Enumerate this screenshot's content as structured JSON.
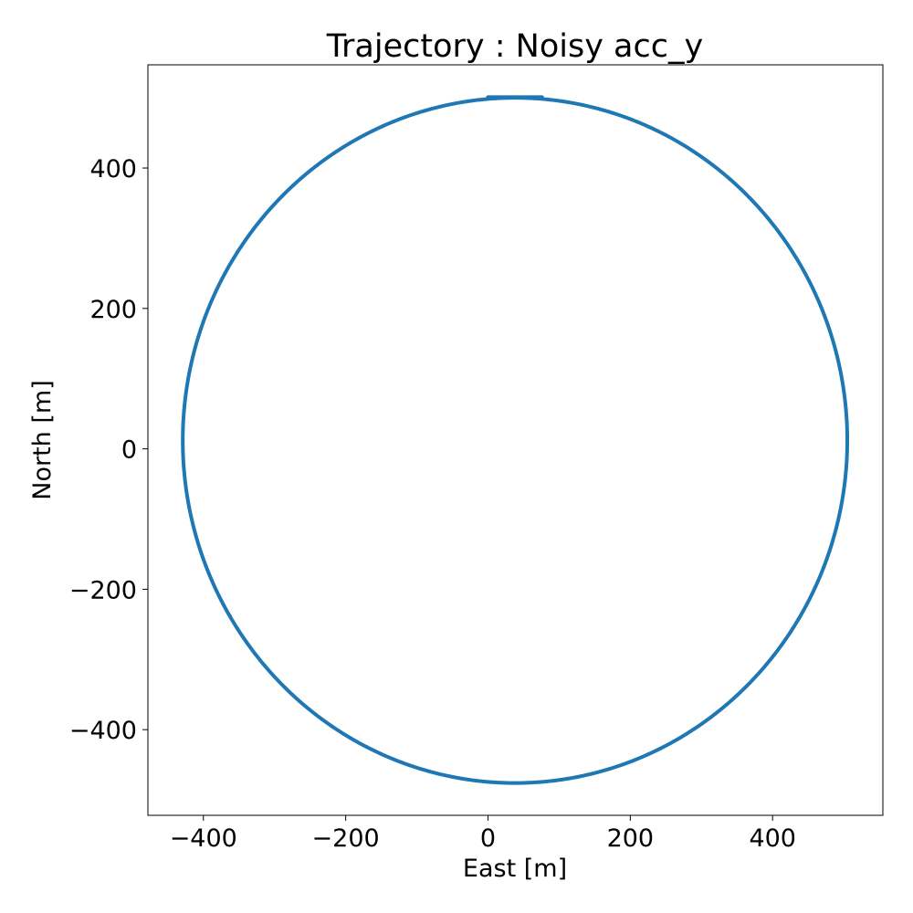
{
  "chart_data": {
    "type": "line",
    "title": "Trajectory : Noisy acc_y",
    "xlabel": "East [m]",
    "ylabel": "North [m]",
    "xlim": [
      -478,
      555
    ],
    "ylim": [
      -522,
      547
    ],
    "xticks": [
      -400,
      -200,
      0,
      200,
      400
    ],
    "yticks": [
      -400,
      -200,
      0,
      200,
      400
    ],
    "xtick_labels": [
      "−400",
      "−200",
      "0",
      "200",
      "400"
    ],
    "ytick_labels": [
      "−400",
      "−200",
      "0",
      "200",
      "400"
    ],
    "grid": false,
    "series": [
      {
        "color": "#1f77b4",
        "shape": "closed loop",
        "center": [
          38,
          12
        ],
        "radius_east": 467,
        "radius_north": 488,
        "start_segment": {
          "x": [
            0,
            76
          ],
          "y": [
            501,
            501
          ]
        }
      }
    ]
  }
}
